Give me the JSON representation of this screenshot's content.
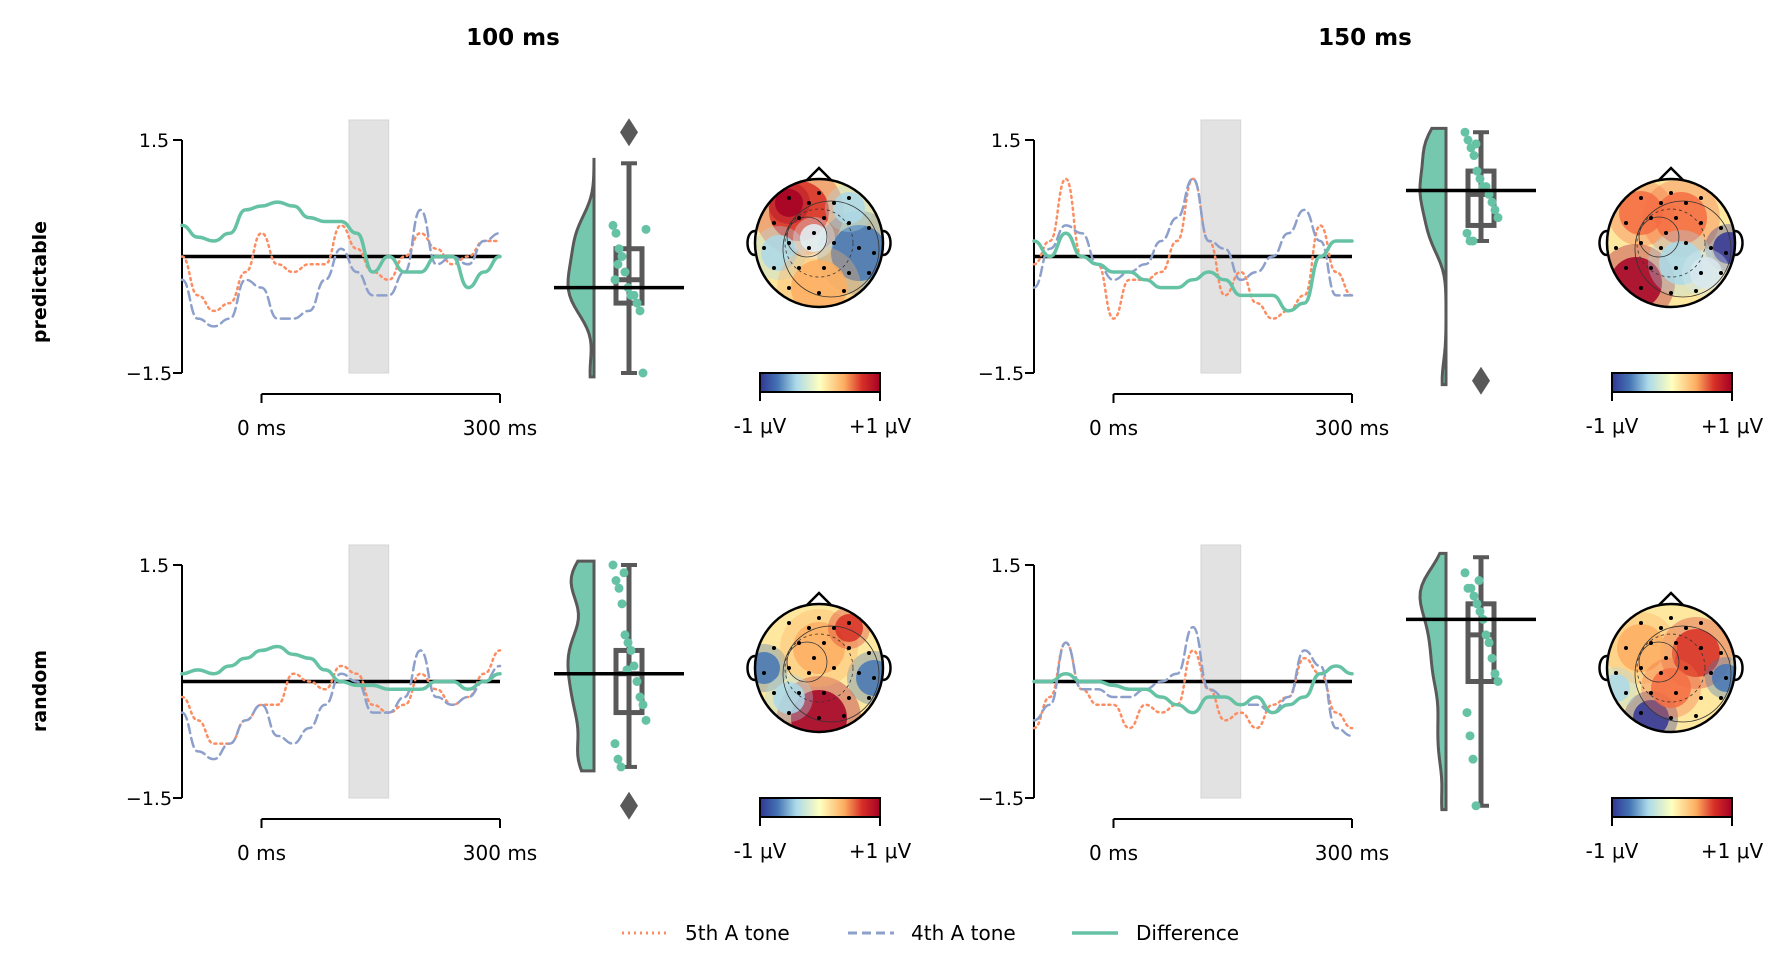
{
  "column_titles": [
    "100 ms",
    "150 ms"
  ],
  "row_labels": [
    "predictable",
    "random"
  ],
  "legend": [
    {
      "label": "5th A tone",
      "color": "#fc8d62",
      "style": "dotted"
    },
    {
      "label": "4th A tone",
      "color": "#8da0cb",
      "style": "dashed"
    },
    {
      "label": "Difference",
      "color": "#66c2a5",
      "style": "solid"
    }
  ],
  "colors": {
    "difference": "#66c2a5",
    "tone5": "#fc8d62",
    "tone4": "#8da0cb",
    "box": "#595959",
    "window_shade": "#d9d9d9"
  },
  "chart_data": {
    "type": "line",
    "erp_axes": {
      "ylim": [
        -1.5,
        1.5
      ],
      "yticks": [
        "1.5",
        "−1.5"
      ],
      "xlim_ms": [
        -100,
        300
      ],
      "xticks": [
        "0 ms",
        "300 ms"
      ],
      "shaded_windows_ms": [
        [
          110,
          160
        ],
        [
          110,
          160
        ]
      ]
    },
    "x_ms": [
      -100,
      -80,
      -60,
      -40,
      -20,
      0,
      20,
      40,
      60,
      80,
      100,
      120,
      140,
      160,
      180,
      200,
      220,
      240,
      260,
      280,
      300
    ],
    "panels": [
      {
        "row": "predictable",
        "window": "100 ms",
        "series": [
          {
            "name": "5th A tone",
            "values": [
              0.0,
              -0.5,
              -0.7,
              -0.6,
              -0.2,
              0.3,
              -0.1,
              -0.2,
              -0.1,
              -0.1,
              0.4,
              0.1,
              -0.2,
              -0.3,
              0.0,
              0.3,
              0.1,
              -0.1,
              0.0,
              0.2,
              0.2
            ]
          },
          {
            "name": "4th A tone",
            "values": [
              -0.3,
              -0.8,
              -0.9,
              -0.8,
              -0.3,
              -0.4,
              -0.8,
              -0.8,
              -0.7,
              -0.3,
              0.1,
              -0.2,
              -0.5,
              -0.5,
              -0.2,
              0.6,
              -0.1,
              0.0,
              -0.1,
              0.2,
              0.3
            ]
          },
          {
            "name": "Difference",
            "values": [
              0.4,
              0.25,
              0.2,
              0.3,
              0.6,
              0.65,
              0.7,
              0.65,
              0.5,
              0.45,
              0.45,
              0.3,
              -0.2,
              0.0,
              -0.2,
              -0.2,
              0.0,
              0.0,
              -0.4,
              -0.2,
              0.0
            ]
          }
        ],
        "box": {
          "median": -0.3,
          "q1": -0.6,
          "q3": 0.1,
          "whisker_low": -1.5,
          "whisker_high": 1.2,
          "outliers": [
            1.6
          ]
        },
        "mean_line": -0.4,
        "points": [
          0.4,
          0.3,
          0.1,
          0.0,
          -0.2,
          -0.4,
          -0.5,
          -0.5,
          -0.6,
          -0.7,
          -1.5,
          0.35,
          -0.3,
          -0.1
        ],
        "topomap_colorbar": [
          "-1 μV",
          "+1 μV"
        ]
      },
      {
        "row": "predictable",
        "window": "150 ms",
        "series": [
          {
            "name": "5th A tone",
            "values": [
              -0.1,
              0.2,
              1.0,
              0.0,
              -0.1,
              -0.8,
              -0.3,
              -0.3,
              -0.2,
              0.2,
              1.0,
              0.2,
              -0.5,
              -0.2,
              -0.6,
              -0.8,
              -0.7,
              -0.5,
              0.4,
              -0.2,
              -0.5
            ]
          },
          {
            "name": "4th A tone",
            "values": [
              -0.4,
              0.1,
              0.4,
              0.3,
              -0.1,
              -0.3,
              -0.2,
              -0.1,
              0.2,
              0.5,
              1.0,
              0.2,
              0.1,
              -0.3,
              -0.2,
              0.0,
              0.3,
              0.6,
              0.2,
              -0.5,
              -0.5
            ]
          },
          {
            "name": "Difference",
            "values": [
              0.2,
              0.0,
              0.3,
              0.0,
              -0.1,
              -0.2,
              -0.2,
              -0.3,
              -0.4,
              -0.4,
              -0.3,
              -0.2,
              -0.3,
              -0.5,
              -0.5,
              -0.5,
              -0.7,
              -0.6,
              0.0,
              0.2,
              0.2
            ]
          }
        ],
        "box": {
          "median": 0.8,
          "q1": 0.4,
          "q3": 1.1,
          "whisker_low": 0.2,
          "whisker_high": 1.6,
          "outliers": [
            -1.6
          ]
        },
        "mean_line": 0.85,
        "points": [
          1.6,
          1.5,
          1.4,
          1.3,
          1.1,
          1.0,
          0.9,
          0.9,
          0.8,
          0.7,
          0.6,
          0.5,
          0.3,
          0.2,
          0.2,
          1.45,
          -1.6
        ],
        "topomap_colorbar": [
          "-1 μV",
          "+1 μV"
        ]
      },
      {
        "row": "random",
        "window": "100 ms",
        "series": [
          {
            "name": "5th A tone",
            "values": [
              -0.2,
              -0.5,
              -0.8,
              -0.8,
              -0.5,
              -0.3,
              -0.3,
              0.1,
              0.0,
              -0.1,
              0.2,
              0.1,
              -0.3,
              -0.4,
              -0.3,
              0.1,
              -0.1,
              -0.3,
              -0.2,
              0.1,
              0.4
            ]
          },
          {
            "name": "4th A tone",
            "values": [
              -0.4,
              -0.9,
              -1.0,
              -0.8,
              -0.5,
              -0.3,
              -0.7,
              -0.8,
              -0.6,
              -0.3,
              0.1,
              0.0,
              -0.4,
              -0.4,
              -0.2,
              0.4,
              -0.2,
              -0.3,
              -0.2,
              0.0,
              0.2
            ]
          },
          {
            "name": "Difference",
            "values": [
              0.1,
              0.15,
              0.1,
              0.2,
              0.3,
              0.4,
              0.45,
              0.35,
              0.3,
              0.15,
              0.0,
              -0.05,
              -0.05,
              -0.1,
              -0.1,
              -0.1,
              0.0,
              0.0,
              -0.1,
              0.0,
              0.1
            ]
          }
        ],
        "box": {
          "median": 0.1,
          "q1": -0.4,
          "q3": 0.4,
          "whisker_low": -1.1,
          "whisker_high": 1.5,
          "outliers": [
            -1.6
          ]
        },
        "mean_line": 0.1,
        "points": [
          1.5,
          1.3,
          1.2,
          1.0,
          0.6,
          0.5,
          0.4,
          0.2,
          0.0,
          -0.2,
          -0.3,
          -0.5,
          -0.8,
          -1.0,
          -1.1,
          1.4,
          0.15
        ],
        "topomap_colorbar": [
          "-1 μV",
          "+1 μV"
        ]
      },
      {
        "row": "random",
        "window": "150 ms",
        "series": [
          {
            "name": "5th A tone",
            "values": [
              -0.6,
              -0.2,
              0.5,
              -0.1,
              -0.3,
              -0.3,
              -0.6,
              -0.3,
              -0.4,
              -0.3,
              0.4,
              -0.1,
              -0.5,
              -0.4,
              -0.6,
              -0.3,
              -0.2,
              0.3,
              0.1,
              -0.4,
              -0.6
            ]
          },
          {
            "name": "4th A tone",
            "values": [
              -0.5,
              -0.3,
              0.5,
              -0.1,
              -0.1,
              -0.2,
              -0.2,
              -0.1,
              0.0,
              0.1,
              0.7,
              -0.1,
              -0.2,
              -0.3,
              -0.3,
              -0.4,
              -0.2,
              0.4,
              0.2,
              -0.6,
              -0.7
            ]
          },
          {
            "name": "Difference",
            "values": [
              0.0,
              0.0,
              0.1,
              0.0,
              0.0,
              -0.05,
              -0.1,
              -0.1,
              -0.2,
              -0.3,
              -0.4,
              -0.2,
              -0.2,
              -0.3,
              -0.2,
              -0.4,
              -0.3,
              -0.2,
              0.1,
              0.2,
              0.1
            ]
          }
        ],
        "box": {
          "median": 0.6,
          "q1": 0.0,
          "q3": 1.0,
          "whisker_low": -1.6,
          "whisker_high": 1.6,
          "outliers": []
        },
        "mean_line": 0.8,
        "points": [
          1.4,
          1.2,
          1.2,
          1.1,
          1.0,
          0.9,
          0.8,
          0.6,
          0.5,
          0.3,
          0.1,
          0.0,
          -0.4,
          -0.7,
          -1.0,
          -1.6,
          1.3
        ],
        "topomap_colorbar": [
          "-1 μV",
          "+1 μV"
        ]
      }
    ]
  }
}
